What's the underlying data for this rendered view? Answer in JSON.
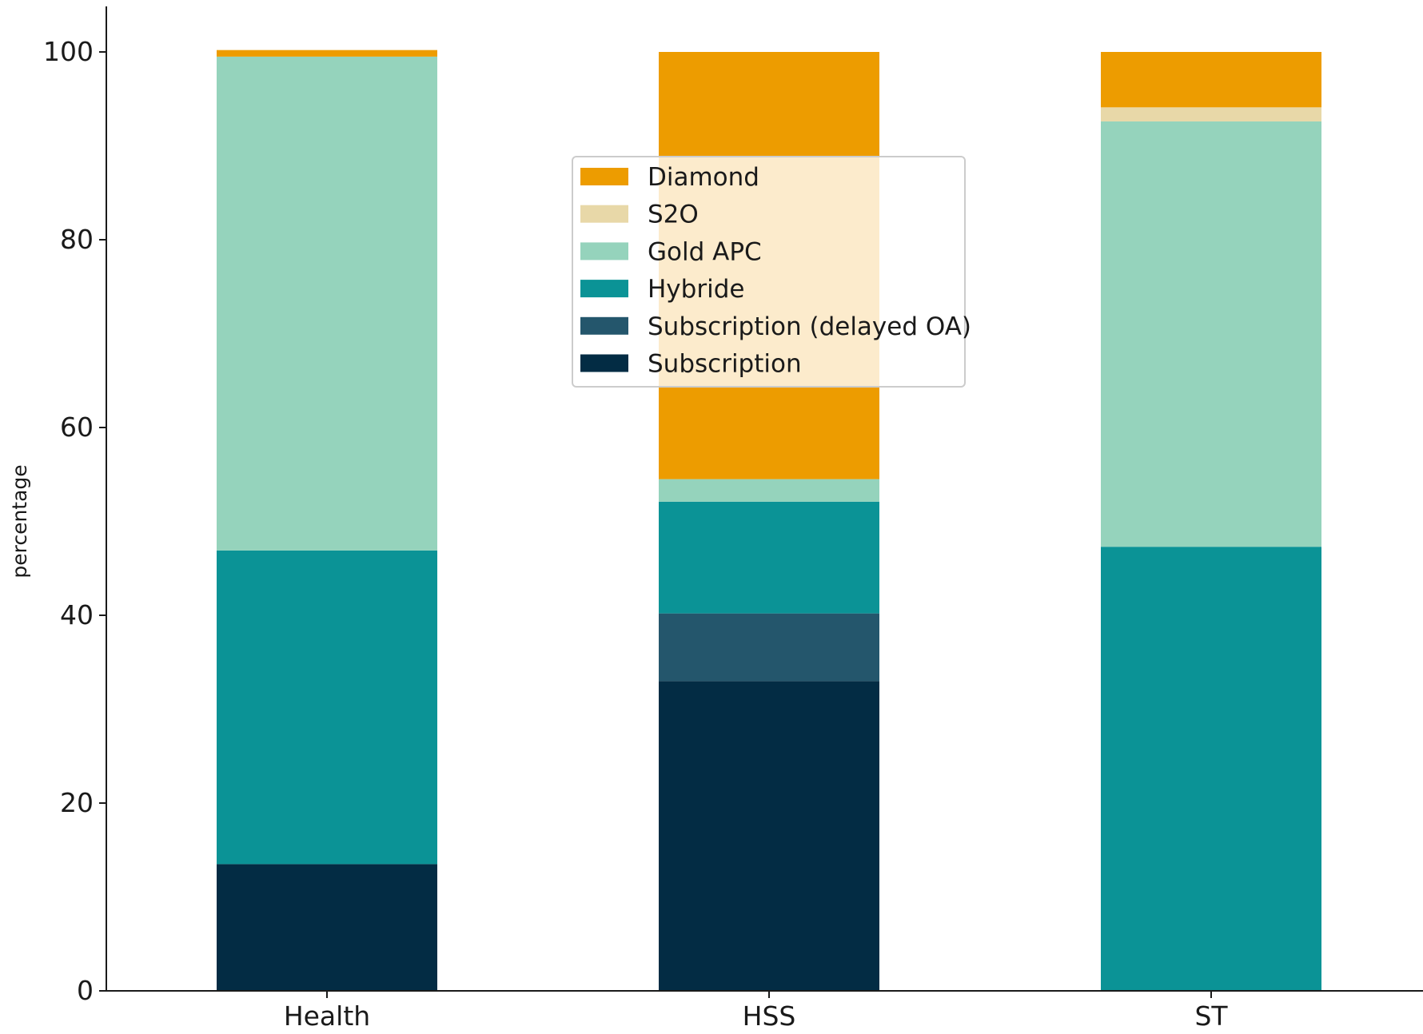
{
  "chart_data": {
    "type": "bar",
    "stacked": true,
    "categories": [
      "Health",
      "HSS",
      "ST"
    ],
    "series": [
      {
        "name": "Subscription",
        "color": "#032c44",
        "values": [
          13.5,
          33.0,
          0.0
        ]
      },
      {
        "name": "Subscription (delayed OA)",
        "color": "#24566c",
        "values": [
          0.0,
          7.2,
          0.0
        ]
      },
      {
        "name": "Hybride",
        "color": "#0b9396",
        "values": [
          33.4,
          11.9,
          47.3
        ]
      },
      {
        "name": "Gold APC",
        "color": "#95d3bc",
        "values": [
          52.6,
          2.4,
          45.3
        ]
      },
      {
        "name": "S2O",
        "color": "#e8d8a8",
        "values": [
          0.0,
          0.0,
          1.5
        ]
      },
      {
        "name": "Diamond",
        "color": "#ed9c00",
        "values": [
          0.7,
          45.5,
          5.9
        ]
      }
    ],
    "ylabel": "percentage",
    "xlabel": "",
    "ylim": [
      0,
      100
    ],
    "yticks": [
      "0",
      "20",
      "40",
      "60",
      "80",
      "100"
    ],
    "grid": false,
    "legend": {
      "placement": "upper center",
      "order": [
        "Diamond",
        "S2O",
        "Gold APC",
        "Hybride",
        "Subscription (delayed OA)",
        "Subscription"
      ]
    }
  }
}
